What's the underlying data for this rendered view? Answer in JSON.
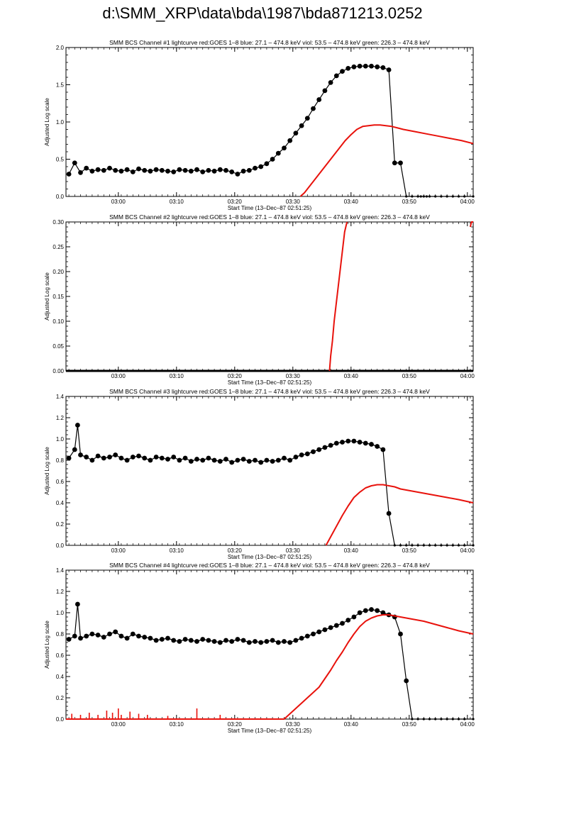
{
  "page": {
    "title": "d:\\SMM_XRP\\data\\bda\\1987\\bda871213.0252"
  },
  "colors": {
    "goes": "#e8120c",
    "bcs": "#000000"
  },
  "chart_data": [
    {
      "type": "line",
      "title": "SMM BCS Channel #1 lightcurve  red:GOES 1–8  blue: 27.1 – 474.8 keV  viol: 53.5 – 474.8 keV  green: 226.3 – 474.8 keV",
      "xlabel": "Start Time (13–Dec–87 02:51:25)",
      "ylabel": "Adjusted Log scale",
      "xlim": [
        2.5,
        72.5
      ],
      "ylim": [
        0,
        2.0
      ],
      "x_ticks": [
        {
          "x": 11.5,
          "label": "03:00"
        },
        {
          "x": 21.5,
          "label": "03:10"
        },
        {
          "x": 31.5,
          "label": "03:20"
        },
        {
          "x": 41.5,
          "label": "03:30"
        },
        {
          "x": 51.5,
          "label": "03:40"
        },
        {
          "x": 61.5,
          "label": "03:50"
        },
        {
          "x": 71.5,
          "label": "04:00"
        }
      ],
      "y_ticks": [
        {
          "v": 0.0,
          "label": "0.0"
        },
        {
          "v": 0.5,
          "label": "0.5"
        },
        {
          "v": 1.0,
          "label": "1.0"
        },
        {
          "v": 1.5,
          "label": "1.5"
        },
        {
          "v": 2.0,
          "label": "2.0"
        }
      ],
      "series": [
        {
          "name": "BCS",
          "kind": "scatter",
          "x": [
            3,
            4,
            5,
            6,
            7,
            8,
            9,
            10,
            11,
            12,
            13,
            14,
            15,
            16,
            17,
            18,
            19,
            20,
            21,
            22,
            23,
            24,
            25,
            26,
            27,
            28,
            29,
            30,
            31,
            32,
            33,
            34,
            35,
            36,
            37,
            38,
            39,
            40,
            41,
            42,
            43,
            44,
            45,
            46,
            47,
            48,
            49,
            50,
            51,
            52,
            53,
            54,
            55,
            56,
            57,
            58,
            59,
            60,
            61,
            62,
            63,
            63.5,
            64,
            64.5,
            65,
            66,
            67,
            68,
            69,
            70,
            71,
            72.5
          ],
          "values": [
            0.3,
            0.45,
            0.32,
            0.38,
            0.34,
            0.36,
            0.35,
            0.38,
            0.35,
            0.34,
            0.36,
            0.33,
            0.37,
            0.35,
            0.34,
            0.36,
            0.35,
            0.34,
            0.33,
            0.36,
            0.35,
            0.34,
            0.36,
            0.33,
            0.35,
            0.34,
            0.36,
            0.35,
            0.33,
            0.3,
            0.34,
            0.35,
            0.38,
            0.4,
            0.44,
            0.5,
            0.58,
            0.65,
            0.75,
            0.85,
            0.95,
            1.05,
            1.18,
            1.3,
            1.42,
            1.53,
            1.62,
            1.68,
            1.72,
            1.74,
            1.75,
            1.75,
            1.75,
            1.74,
            1.73,
            1.7,
            0.45,
            0.45,
            0.0,
            0.0,
            0.0,
            0.0,
            0.0,
            0.0,
            0.0,
            0.0,
            0.0,
            0.0,
            0.0,
            0.0,
            0.0,
            0.0
          ]
        },
        {
          "name": "GOES 1–8",
          "kind": "line",
          "x": [
            42.8,
            43.5,
            44.5,
            45.5,
            46.5,
            47.5,
            48.5,
            49.5,
            50.5,
            51.5,
            52.5,
            53.5,
            54.5,
            55.5,
            56.5,
            57.5,
            58.5,
            59.5,
            60.5,
            62.5,
            64.5,
            66.5,
            68.5,
            70.5,
            72.5
          ],
          "values": [
            0.0,
            0.05,
            0.15,
            0.25,
            0.35,
            0.45,
            0.55,
            0.65,
            0.75,
            0.83,
            0.9,
            0.94,
            0.95,
            0.96,
            0.96,
            0.95,
            0.94,
            0.92,
            0.9,
            0.87,
            0.84,
            0.81,
            0.78,
            0.75,
            0.71
          ]
        }
      ]
    },
    {
      "type": "line",
      "title": "SMM BCS Channel #2 lightcurve  red:GOES 1–8  blue: 27.1 – 474.8 keV  viol: 53.5 – 474.8 keV  green: 226.3 – 474.8 keV",
      "xlabel": "Start Time (13–Dec–87 02:51:25)",
      "ylabel": "Adjusted Log scale",
      "xlim": [
        2.5,
        72.5
      ],
      "ylim": [
        0,
        0.3
      ],
      "x_ticks": [
        {
          "x": 11.5,
          "label": "03:00"
        },
        {
          "x": 21.5,
          "label": "03:10"
        },
        {
          "x": 31.5,
          "label": "03:20"
        },
        {
          "x": 41.5,
          "label": "03:30"
        },
        {
          "x": 51.5,
          "label": "03:40"
        },
        {
          "x": 61.5,
          "label": "03:50"
        },
        {
          "x": 71.5,
          "label": "04:00"
        }
      ],
      "y_ticks": [
        {
          "v": 0.0,
          "label": "0.00"
        },
        {
          "v": 0.05,
          "label": "0.05"
        },
        {
          "v": 0.1,
          "label": "0.10"
        },
        {
          "v": 0.15,
          "label": "0.15"
        },
        {
          "v": 0.2,
          "label": "0.20"
        },
        {
          "v": 0.25,
          "label": "0.25"
        },
        {
          "v": 0.3,
          "label": "0.30"
        }
      ],
      "series": [
        {
          "name": "BCS",
          "kind": "baseline",
          "x": [
            2.5,
            72.5
          ],
          "values": [
            0.0,
            0.0
          ]
        },
        {
          "name": "GOES 1–8",
          "kind": "line",
          "x": [
            47.8,
            48.0,
            48.3,
            48.6,
            48.9,
            49.2,
            49.5,
            49.8,
            50.1,
            50.4,
            50.8
          ],
          "values": [
            0.0,
            0.03,
            0.06,
            0.1,
            0.13,
            0.16,
            0.19,
            0.22,
            0.25,
            0.28,
            0.3
          ]
        },
        {
          "name": "GOES 1–8 (edge)",
          "kind": "line",
          "x": [
            72.0,
            72.2,
            72.5
          ],
          "values": [
            0.29,
            0.3,
            0.3
          ]
        }
      ]
    },
    {
      "type": "line",
      "title": "SMM BCS Channel #3 lightcurve  red:GOES 1–8  blue: 27.1 – 474.8 keV  viol: 53.5 – 474.8 keV  green: 226.3 – 474.8 keV",
      "xlabel": "Start Time (13–Dec–87 02:51:25)",
      "ylabel": "Adjusted Log scale",
      "xlim": [
        2.5,
        72.5
      ],
      "ylim": [
        0,
        1.4
      ],
      "x_ticks": [
        {
          "x": 11.5,
          "label": "03:00"
        },
        {
          "x": 21.5,
          "label": "03:10"
        },
        {
          "x": 31.5,
          "label": "03:20"
        },
        {
          "x": 41.5,
          "label": "03:30"
        },
        {
          "x": 51.5,
          "label": "03:40"
        },
        {
          "x": 61.5,
          "label": "03:50"
        },
        {
          "x": 71.5,
          "label": "04:00"
        }
      ],
      "y_ticks": [
        {
          "v": 0.0,
          "label": "0.0"
        },
        {
          "v": 0.2,
          "label": "0.2"
        },
        {
          "v": 0.4,
          "label": "0.4"
        },
        {
          "v": 0.6,
          "label": "0.6"
        },
        {
          "v": 0.8,
          "label": "0.8"
        },
        {
          "v": 1.0,
          "label": "1.0"
        },
        {
          "v": 1.2,
          "label": "1.2"
        },
        {
          "v": 1.4,
          "label": "1.4"
        }
      ],
      "series": [
        {
          "name": "BCS",
          "kind": "scatter",
          "x": [
            3,
            4,
            4.5,
            5,
            6,
            7,
            8,
            9,
            10,
            11,
            12,
            13,
            14,
            15,
            16,
            17,
            18,
            19,
            20,
            21,
            22,
            23,
            24,
            25,
            26,
            27,
            28,
            29,
            30,
            31,
            32,
            33,
            34,
            35,
            36,
            37,
            38,
            39,
            40,
            41,
            42,
            43,
            44,
            45,
            46,
            47,
            48,
            49,
            50,
            51,
            52,
            53,
            54,
            55,
            56,
            57,
            58,
            59,
            60,
            61,
            62,
            63,
            64,
            65,
            66,
            67,
            68,
            69,
            70,
            71,
            72.5
          ],
          "values": [
            0.82,
            0.9,
            1.13,
            0.85,
            0.83,
            0.8,
            0.84,
            0.82,
            0.83,
            0.85,
            0.82,
            0.8,
            0.83,
            0.84,
            0.82,
            0.8,
            0.83,
            0.82,
            0.81,
            0.83,
            0.8,
            0.82,
            0.79,
            0.81,
            0.8,
            0.82,
            0.8,
            0.79,
            0.81,
            0.78,
            0.8,
            0.81,
            0.79,
            0.8,
            0.78,
            0.8,
            0.79,
            0.8,
            0.82,
            0.8,
            0.83,
            0.85,
            0.86,
            0.88,
            0.9,
            0.92,
            0.94,
            0.96,
            0.97,
            0.98,
            0.98,
            0.97,
            0.96,
            0.95,
            0.93,
            0.9,
            0.3,
            0.0,
            0.0,
            0.0,
            0.0,
            0.0,
            0.0,
            0.0,
            0.0,
            0.0,
            0.0,
            0.0,
            0.0,
            0.0,
            0.0
          ]
        },
        {
          "name": "GOES 1–8",
          "kind": "line",
          "x": [
            47.2,
            48,
            49,
            50,
            51,
            52,
            53,
            54,
            55,
            56,
            57,
            58,
            59,
            60,
            62,
            64,
            66,
            68,
            70,
            72.5
          ],
          "values": [
            0.0,
            0.08,
            0.18,
            0.28,
            0.37,
            0.45,
            0.5,
            0.54,
            0.56,
            0.57,
            0.57,
            0.56,
            0.55,
            0.53,
            0.51,
            0.49,
            0.47,
            0.45,
            0.43,
            0.4
          ]
        }
      ]
    },
    {
      "type": "line",
      "title": "SMM BCS Channel #4 lightcurve  red:GOES 1–8  blue: 27.1 – 474.8 keV  viol: 53.5 – 474.8 keV  green: 226.3 – 474.8 keV",
      "xlabel": "Start Time (13–Dec–87 02:51:25)",
      "ylabel": "Adjusted Log scale",
      "xlim": [
        2.5,
        72.5
      ],
      "ylim": [
        0,
        1.4
      ],
      "x_ticks": [
        {
          "x": 11.5,
          "label": "03:00"
        },
        {
          "x": 21.5,
          "label": "03:10"
        },
        {
          "x": 31.5,
          "label": "03:20"
        },
        {
          "x": 41.5,
          "label": "03:30"
        },
        {
          "x": 51.5,
          "label": "03:40"
        },
        {
          "x": 61.5,
          "label": "03:50"
        },
        {
          "x": 71.5,
          "label": "04:00"
        }
      ],
      "y_ticks": [
        {
          "v": 0.0,
          "label": "0.0"
        },
        {
          "v": 0.2,
          "label": "0.2"
        },
        {
          "v": 0.4,
          "label": "0.4"
        },
        {
          "v": 0.6,
          "label": "0.6"
        },
        {
          "v": 0.8,
          "label": "0.8"
        },
        {
          "v": 1.0,
          "label": "1.0"
        },
        {
          "v": 1.2,
          "label": "1.2"
        },
        {
          "v": 1.4,
          "label": "1.4"
        }
      ],
      "series": [
        {
          "name": "BCS",
          "kind": "scatter",
          "x": [
            3,
            4,
            4.5,
            5,
            6,
            7,
            8,
            9,
            10,
            11,
            12,
            13,
            14,
            15,
            16,
            17,
            18,
            19,
            20,
            21,
            22,
            23,
            24,
            25,
            26,
            27,
            28,
            29,
            30,
            31,
            32,
            33,
            34,
            35,
            36,
            37,
            38,
            39,
            40,
            41,
            42,
            43,
            44,
            45,
            46,
            47,
            48,
            49,
            50,
            51,
            52,
            53,
            54,
            55,
            56,
            57,
            58,
            59,
            60,
            61,
            62,
            63,
            64,
            65,
            66,
            67,
            68,
            69,
            70,
            71,
            72.5
          ],
          "values": [
            0.75,
            0.78,
            1.08,
            0.76,
            0.78,
            0.8,
            0.79,
            0.77,
            0.8,
            0.82,
            0.78,
            0.76,
            0.8,
            0.78,
            0.77,
            0.76,
            0.74,
            0.75,
            0.76,
            0.74,
            0.73,
            0.75,
            0.74,
            0.73,
            0.75,
            0.74,
            0.73,
            0.72,
            0.74,
            0.73,
            0.75,
            0.74,
            0.72,
            0.73,
            0.72,
            0.73,
            0.74,
            0.72,
            0.73,
            0.72,
            0.74,
            0.76,
            0.78,
            0.8,
            0.82,
            0.84,
            0.86,
            0.88,
            0.9,
            0.93,
            0.96,
            1.0,
            1.02,
            1.03,
            1.02,
            1.0,
            0.98,
            0.96,
            0.8,
            0.36,
            0.0,
            0.0,
            0.0,
            0.0,
            0.0,
            0.0,
            0.0,
            0.0,
            0.0,
            0.0,
            0.0
          ]
        },
        {
          "name": "GOES 1–8",
          "kind": "line",
          "x": [
            2.5,
            40,
            41,
            42,
            43,
            44,
            45,
            46,
            47,
            48,
            49,
            50,
            51,
            52,
            53,
            54,
            55,
            56,
            57,
            58,
            59,
            60,
            62,
            64,
            66,
            68,
            70,
            72.5
          ],
          "values": [
            0.0,
            0.0,
            0.05,
            0.1,
            0.15,
            0.2,
            0.25,
            0.3,
            0.38,
            0.46,
            0.55,
            0.63,
            0.72,
            0.8,
            0.87,
            0.92,
            0.95,
            0.97,
            0.98,
            0.98,
            0.97,
            0.96,
            0.94,
            0.92,
            0.89,
            0.86,
            0.83,
            0.8
          ]
        },
        {
          "name": "GOES 1–8 spikes",
          "kind": "spikes",
          "x": [
            3.5,
            5,
            6.5,
            8,
            9.5,
            10.5,
            11.5,
            12,
            13.5,
            15,
            16.5,
            20,
            25,
            29
          ],
          "values": [
            0.05,
            0.04,
            0.06,
            0.04,
            0.08,
            0.06,
            0.1,
            0.04,
            0.07,
            0.05,
            0.04,
            0.03,
            0.1,
            0.04
          ]
        }
      ]
    }
  ]
}
